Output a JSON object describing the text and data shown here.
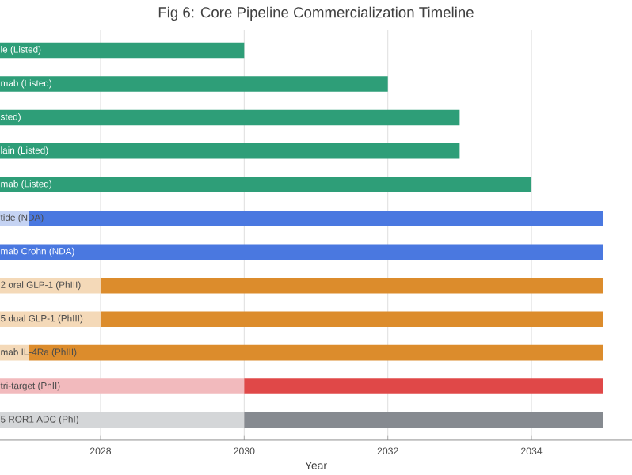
{
  "chart_data": {
    "type": "bar",
    "orientation": "horizontal",
    "title": "Fig 6: Core Pipeline Commercialization Timeline",
    "xlabel": "Year",
    "categories": [
      "le (Listed)",
      "mab (Listed)",
      "sted)",
      "lain (Listed)",
      "mab (Listed)",
      "tide (NDA)",
      "mab Crohn (NDA)",
      "2 oral GLP-1 (PhIII)",
      "5 dual GLP-1 (PhIII)",
      "mab IL-4Ra (PhIII)",
      "tri-target (PhII)",
      "5 ROR1 ADC (PhI)"
    ],
    "series": [
      {
        "colors": [
          "#c5d3f3",
          "#c5d3f3",
          "#c5d3f3",
          "#c5d3f3",
          "#c5d3f3",
          "#c5d3f3",
          "#c5d3f3",
          "#f4d9b8",
          "#f4d9b8",
          "#f4d9b8",
          "#f2babd",
          "#d4d6d8"
        ],
        "base": [
          null,
          null,
          null,
          null,
          null,
          2026.6,
          null,
          2026.6,
          2026.6,
          2026.6,
          2026.6,
          2026.6
        ],
        "values": [
          null,
          null,
          null,
          null,
          null,
          0.4,
          null,
          1.4,
          1.4,
          0.4,
          3.4,
          3.4
        ]
      },
      {
        "colors": [
          "#2e9e78",
          "#2e9e78",
          "#2e9e78",
          "#2e9e78",
          "#2e9e78",
          "#4a78e0",
          "#4a78e0",
          "#dc8c2c",
          "#dc8c2c",
          "#dc8c2c",
          "#e04848",
          "#868a90"
        ],
        "base": [
          2026.6,
          2026.6,
          2026.6,
          2026.6,
          2026.6,
          2027,
          2026.6,
          2028,
          2028,
          2027,
          2030,
          2030
        ],
        "values": [
          3.4,
          5.4,
          6.4,
          6.4,
          7.4,
          8,
          8.4,
          7,
          7,
          8,
          5,
          5
        ]
      }
    ],
    "xlim": [
      2026.6,
      2035.4
    ],
    "xticks": [
      2028,
      2030,
      2032,
      2034
    ],
    "grid": "x"
  }
}
